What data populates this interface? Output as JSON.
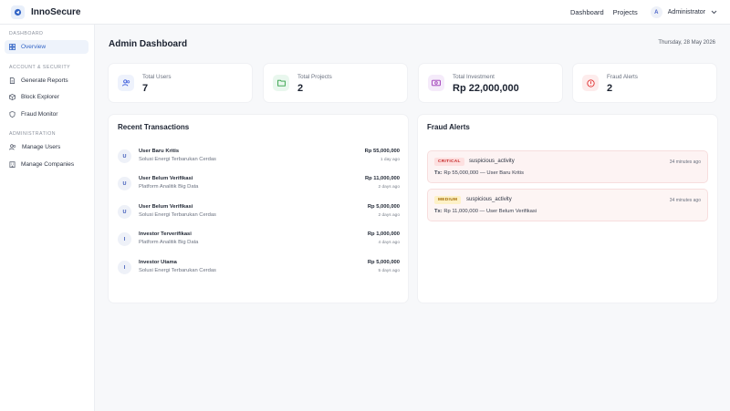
{
  "app": {
    "name": "InnoSecure"
  },
  "topnav": {
    "items": [
      "Dashboard",
      "Projects"
    ],
    "user": {
      "initial": "A",
      "name": "Administrator"
    }
  },
  "sidebar": {
    "sections": [
      {
        "title": "DASHBOARD",
        "items": [
          {
            "label": "Overview",
            "icon": "grid-icon",
            "active": true
          }
        ]
      },
      {
        "title": "ACCOUNT & SECURITY",
        "items": [
          {
            "label": "Generate Reports",
            "icon": "document-icon"
          },
          {
            "label": "Block Explorer",
            "icon": "cube-icon"
          },
          {
            "label": "Fraud Monitor",
            "icon": "shield-icon"
          }
        ]
      },
      {
        "title": "ADMINISTRATION",
        "items": [
          {
            "label": "Manage Users",
            "icon": "users-icon"
          },
          {
            "label": "Manage Companies",
            "icon": "building-icon"
          }
        ]
      }
    ]
  },
  "page": {
    "title": "Admin Dashboard",
    "date": "Thursday, 28 May 2026"
  },
  "stats": [
    {
      "label": "Total Users",
      "value": "7",
      "icon": "users-icon",
      "color": "#3b5bdb",
      "bg": "#eef2fc"
    },
    {
      "label": "Total Projects",
      "value": "2",
      "icon": "folder-icon",
      "color": "#2f9e44",
      "bg": "#e9f7ee"
    },
    {
      "label": "Total Investment",
      "value": "Rp 22,000,000",
      "icon": "money-icon",
      "color": "#9c36b5",
      "bg": "#f5ebfa"
    },
    {
      "label": "Fraud Alerts",
      "value": "2",
      "icon": "alert-icon",
      "color": "#e03131",
      "bg": "#fdecec"
    }
  ],
  "transactions": {
    "title": "Recent Transactions",
    "rows": [
      {
        "initial": "U",
        "name": "User Baru Kritis",
        "company": "Solusi Energi Terbarukan Cerdas",
        "amount": "Rp 55,000,000",
        "time": "1 day ago"
      },
      {
        "initial": "U",
        "name": "User Belum Verifikasi",
        "company": "Platform Analitik Big Data",
        "amount": "Rp 11,000,000",
        "time": "2 days ago"
      },
      {
        "initial": "U",
        "name": "User Belum Verifikasi",
        "company": "Solusi Energi Terbarukan Cerdas",
        "amount": "Rp 5,000,000",
        "time": "2 days ago"
      },
      {
        "initial": "I",
        "name": "Investor Terverifikasi",
        "company": "Platform Analitik Big Data",
        "amount": "Rp 1,000,000",
        "time": "4 days ago"
      },
      {
        "initial": "I",
        "name": "Investor Utama",
        "company": "Solusi Energi Terbarukan Cerdas",
        "amount": "Rp 5,000,000",
        "time": "5 days ago"
      }
    ]
  },
  "fraud": {
    "title": "Fraud Alerts",
    "alerts": [
      {
        "severity": "CRITICAL",
        "type": "suspicious_activity",
        "time": "34 minutes ago",
        "tx_prefix": "Tx:",
        "tx_detail": "Rp 55,000,000 — User Baru Kritis"
      },
      {
        "severity": "MEDIUM",
        "type": "suspicious_activity",
        "time": "34 minutes ago",
        "tx_prefix": "Tx:",
        "tx_detail": "Rp 11,000,000 — User Belum Verifikasi"
      }
    ]
  }
}
